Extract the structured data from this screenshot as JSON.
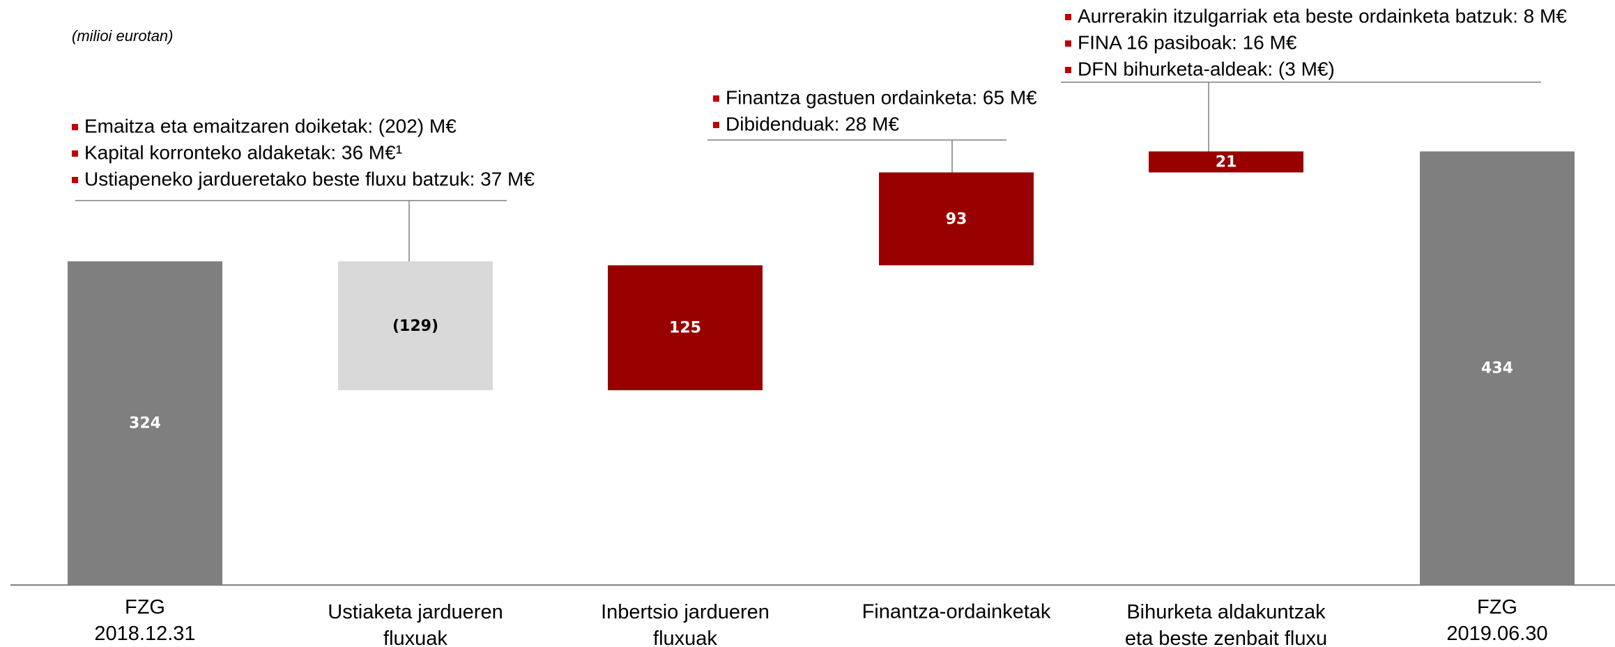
{
  "chart_data": {
    "type": "waterfall",
    "subtitle": "(milioi eurotan)",
    "categories": [
      "FZG\n2018.12.31",
      "Ustiaketa jardueren\nfluxuak",
      "Inbertsio jardueren\nfluxuak",
      "Finantza-ordainketak",
      "Bihurketa aldakuntzak\neta beste zenbait fluxu",
      "FZG\n2019.06.30"
    ],
    "values": [
      324,
      -129,
      125,
      93,
      21,
      434
    ],
    "value_labels": [
      "324",
      "(129)",
      "125",
      "93",
      "21",
      "434"
    ],
    "measures": [
      "total",
      "relative",
      "relative",
      "relative",
      "relative",
      "total"
    ],
    "colors": [
      "#7f7f7f",
      "#d9d9d9",
      "#990000",
      "#990000",
      "#990000",
      "#7f7f7f"
    ],
    "ylim": [
      0,
      580
    ],
    "annotations": [
      {
        "items": [
          "Emaitza eta emaitzaren doiketak: (202) M€",
          "Kapital korronteko aldaketak: 36 M€¹",
          "Ustiapeneko jardueretako beste fluxu batzuk: 37 M€"
        ]
      },
      {
        "items": [
          "Finantza gastuen ordainketa: 65 M€",
          "Dibidenduak: 28 M€"
        ]
      },
      {
        "items": [
          "Aurrerakin itzulgarriak eta beste ordainketa batzuk: 8 M€",
          "FINA 16 pasiboak: 16 M€",
          "DFN bihurketa-aldeak: (3 M€)"
        ]
      }
    ]
  }
}
